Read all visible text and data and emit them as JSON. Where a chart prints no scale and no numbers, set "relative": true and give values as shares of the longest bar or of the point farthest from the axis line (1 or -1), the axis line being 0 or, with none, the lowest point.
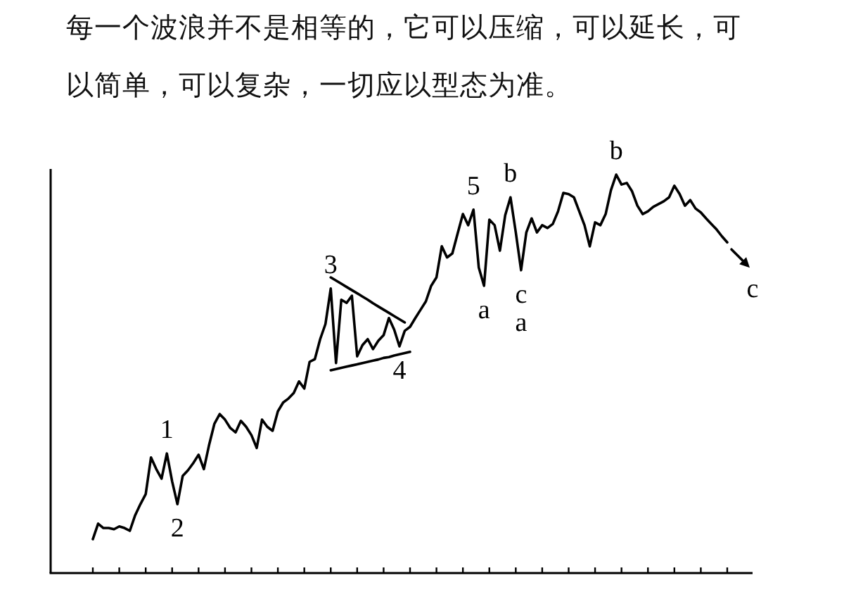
{
  "chart_data": {
    "type": "line",
    "title": "每一个波浪并不是相等的，它可以压缩，可以延长，可以简单，可以复杂，一切应以型态为准。",
    "relative": true,
    "categories": [
      null,
      null,
      null,
      null,
      null,
      null,
      null,
      null,
      null,
      null,
      null,
      null,
      null,
      null,
      null,
      null,
      null,
      null,
      null,
      null,
      null,
      null,
      null,
      null,
      null,
      null,
      null,
      null,
      null,
      null,
      null,
      null,
      null,
      null,
      null,
      null,
      null,
      null,
      null,
      null,
      null,
      null,
      null,
      null,
      null,
      null,
      null,
      null,
      null,
      null,
      null,
      null,
      null,
      null,
      null,
      null,
      null,
      null,
      null,
      null,
      null,
      null,
      null,
      null,
      null,
      null,
      null,
      null,
      null,
      null,
      null,
      null,
      null,
      null,
      null,
      null,
      null,
      null,
      null,
      null,
      null,
      null,
      null,
      null,
      null,
      null,
      null,
      null,
      null,
      null,
      null,
      null,
      null,
      null,
      null,
      null,
      null,
      null,
      null,
      null,
      null,
      null,
      null,
      null,
      null,
      null,
      null,
      null,
      null,
      null,
      null,
      null,
      null,
      null,
      null,
      null,
      null,
      null,
      null,
      null,
      null
    ],
    "series": [
      {
        "color": "#000000",
        "values": [
          0.085,
          0.124,
          0.113,
          0.113,
          0.11,
          0.117,
          0.113,
          0.106,
          0.145,
          0.173,
          0.198,
          0.29,
          0.261,
          0.237,
          0.3,
          0.23,
          0.173,
          0.244,
          0.258,
          0.276,
          0.297,
          0.261,
          0.322,
          0.375,
          0.399,
          0.385,
          0.364,
          0.353,
          0.382,
          0.367,
          0.346,
          0.314,
          0.385,
          0.367,
          0.357,
          0.406,
          0.428,
          0.438,
          0.452,
          0.481,
          0.463,
          0.53,
          0.537,
          0.587,
          0.625,
          0.714,
          0.527,
          0.686,
          0.678,
          0.696,
          0.544,
          0.572,
          0.587,
          0.562,
          0.583,
          0.597,
          0.64,
          0.611,
          0.569,
          0.608,
          0.618,
          0.64,
          0.661,
          0.682,
          0.721,
          0.742,
          0.82,
          0.792,
          0.802,
          0.852,
          0.901,
          0.873,
          0.912,
          0.767,
          0.721,
          0.887,
          0.873,
          0.809,
          0.898,
          0.943,
          0.855,
          0.76,
          0.855,
          0.89,
          0.855,
          0.873,
          0.866,
          0.876,
          0.908,
          0.954,
          0.951,
          0.943,
          0.908,
          0.873,
          0.82,
          0.88,
          0.873,
          0.901,
          0.961,
          1,
          0.975,
          0.979,
          0.958,
          0.922,
          0.901,
          0.908,
          0.919,
          0.926,
          0.933,
          0.943,
          0.972,
          0.951,
          0.922,
          0.936,
          0.915,
          0.905,
          0.89,
          0.876,
          0.862,
          0.845,
          0.83
        ]
      },
      {
        "color": "#000000",
        "values": [
          null,
          null,
          null,
          null,
          null,
          null,
          null,
          null,
          null,
          null,
          null,
          null,
          null,
          null,
          null,
          null,
          null,
          null,
          null,
          null,
          null,
          null,
          null,
          null,
          null,
          null,
          null,
          null,
          null,
          null,
          null,
          null,
          null,
          null,
          null,
          null,
          null,
          null,
          null,
          null,
          null,
          null,
          null,
          null,
          null,
          0.742,
          0.734,
          0.726,
          0.718,
          0.71,
          0.702,
          0.694,
          0.686,
          0.677,
          0.669,
          0.661,
          0.653,
          0.645,
          0.637,
          0.629,
          null,
          null,
          null,
          null,
          null,
          null,
          null,
          null,
          null,
          null,
          null,
          null,
          null,
          null,
          null,
          null,
          null,
          null,
          null,
          null,
          null,
          null,
          null,
          null,
          null,
          null,
          null,
          null,
          null,
          null,
          null,
          null,
          null,
          null,
          null,
          null,
          null,
          null,
          null,
          null,
          null,
          null,
          null,
          null,
          null,
          null,
          null,
          null,
          null,
          null,
          null,
          null,
          null,
          null,
          null,
          null,
          null,
          null,
          null,
          null,
          null
        ]
      },
      {
        "color": "#000000",
        "values": [
          null,
          null,
          null,
          null,
          null,
          null,
          null,
          null,
          null,
          null,
          null,
          null,
          null,
          null,
          null,
          null,
          null,
          null,
          null,
          null,
          null,
          null,
          null,
          null,
          null,
          null,
          null,
          null,
          null,
          null,
          null,
          null,
          null,
          null,
          null,
          null,
          null,
          null,
          null,
          null,
          null,
          null,
          null,
          null,
          null,
          0.509,
          0.512,
          0.515,
          0.518,
          0.521,
          0.524,
          0.527,
          0.53,
          0.533,
          0.536,
          0.54,
          0.542,
          0.546,
          0.549,
          0.552,
          0.555,
          null,
          null,
          null,
          null,
          null,
          null,
          null,
          null,
          null,
          null,
          null,
          null,
          null,
          null,
          null,
          null,
          null,
          null,
          null,
          null,
          null,
          null,
          null,
          null,
          null,
          null,
          null,
          null,
          null,
          null,
          null,
          null,
          null,
          null,
          null,
          null,
          null,
          null,
          null,
          null,
          null,
          null,
          null,
          null,
          null,
          null,
          null,
          null,
          null,
          null,
          null,
          null,
          null,
          null,
          null,
          null,
          null,
          null,
          null,
          null
        ]
      }
    ],
    "annotations": [
      {
        "text": "1",
        "y": 0.3
      },
      {
        "text": "2",
        "y": 0.173
      },
      {
        "text": "3",
        "y": 0.714
      },
      {
        "text": "4",
        "y": 0.569
      },
      {
        "text": "5",
        "y": 0.912
      },
      {
        "text": "a",
        "y": 0.721
      },
      {
        "text": "b",
        "y": 0.943
      },
      {
        "text": "c",
        "y": 0.76
      },
      {
        "text": "a",
        "y": 0.76
      },
      {
        "text": "b",
        "y": 1
      },
      "c"
    ]
  }
}
